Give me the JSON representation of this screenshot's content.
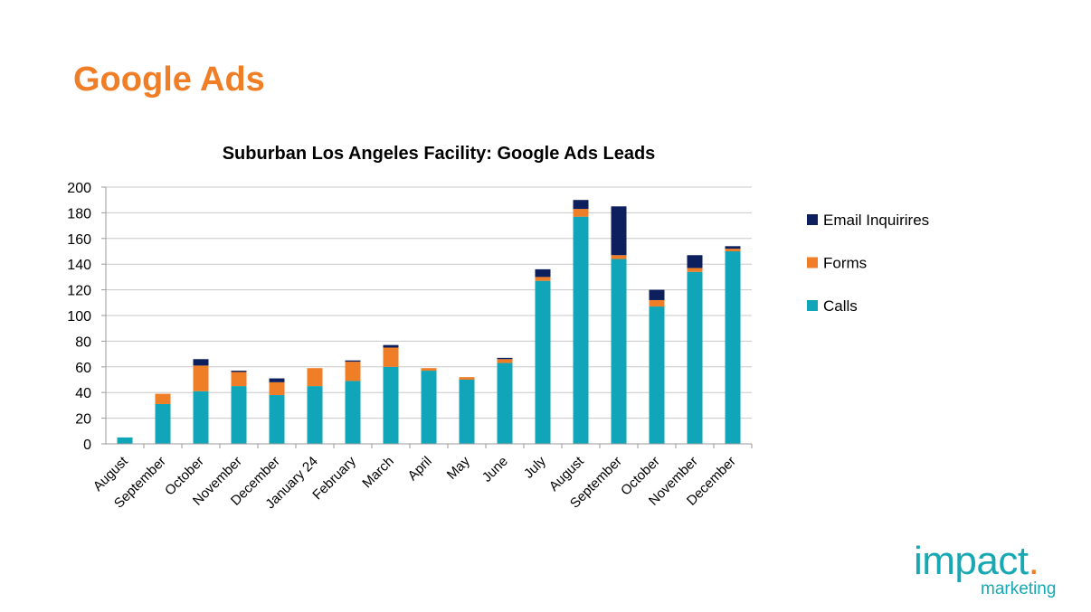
{
  "slide": {
    "title": "Google Ads"
  },
  "logo": {
    "main": "impact",
    "dot": ".",
    "sub": "marketing"
  },
  "colors": {
    "title": "#F07E26",
    "calls": "#10A5B8",
    "forms": "#F07E26",
    "email": "#0D1F5C",
    "grid": "#C8C8C8"
  },
  "chart_data": {
    "type": "bar",
    "stacked": true,
    "title": "Suburban Los Angeles Facility: Google Ads Leads",
    "categories": [
      "August",
      "September",
      "October",
      "November",
      "December",
      "January 24",
      "February",
      "March",
      "April",
      "May",
      "June",
      "July",
      "August",
      "September",
      "October",
      "November",
      "December"
    ],
    "series": [
      {
        "name": "Calls",
        "color": "#10A5B8",
        "values": [
          5,
          31,
          41,
          45,
          38,
          45,
          49,
          60,
          57,
          50,
          63,
          127,
          177,
          144,
          107,
          134,
          150
        ]
      },
      {
        "name": "Forms",
        "color": "#F07E26",
        "values": [
          0,
          8,
          20,
          11,
          10,
          14,
          15,
          15,
          2,
          2,
          3,
          3,
          6,
          3,
          5,
          3,
          2
        ]
      },
      {
        "name": "Email Inquirires",
        "color": "#0D1F5C",
        "values": [
          0,
          0,
          5,
          1,
          3,
          0,
          1,
          2,
          0,
          0,
          1,
          6,
          7,
          38,
          8,
          10,
          2
        ]
      }
    ],
    "legend_order": [
      "Email Inquirires",
      "Forms",
      "Calls"
    ],
    "legend_position": "right",
    "ylim": [
      0,
      200
    ],
    "yticks": [
      0,
      20,
      40,
      60,
      80,
      100,
      120,
      140,
      160,
      180,
      200
    ],
    "grid": true
  }
}
